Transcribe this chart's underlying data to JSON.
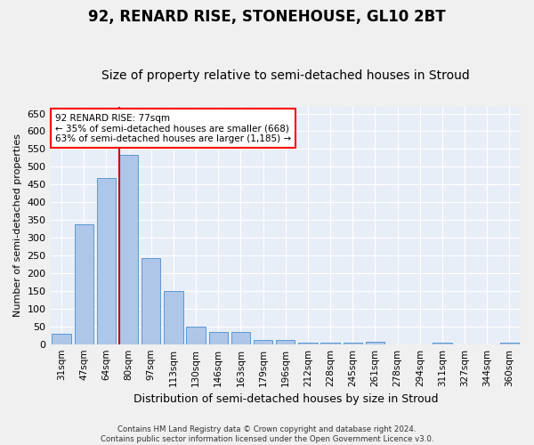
{
  "title": "92, RENARD RISE, STONEHOUSE, GL10 2BT",
  "subtitle": "Size of property relative to semi-detached houses in Stroud",
  "xlabel": "Distribution of semi-detached houses by size in Stroud",
  "ylabel": "Number of semi-detached properties",
  "categories": [
    "31sqm",
    "47sqm",
    "64sqm",
    "80sqm",
    "97sqm",
    "113sqm",
    "130sqm",
    "146sqm",
    "163sqm",
    "179sqm",
    "196sqm",
    "212sqm",
    "228sqm",
    "245sqm",
    "261sqm",
    "278sqm",
    "294sqm",
    "311sqm",
    "327sqm",
    "344sqm",
    "360sqm"
  ],
  "values": [
    29,
    338,
    468,
    534,
    242,
    150,
    49,
    35,
    35,
    12,
    12,
    5,
    5,
    5,
    6,
    0,
    0,
    5,
    0,
    0,
    5
  ],
  "bar_color": "#aec6e8",
  "bar_edge_color": "#5a9ad4",
  "highlight_color": "#cc0000",
  "annotation_text_line1": "92 RENARD RISE: 77sqm",
  "annotation_text_line2": "← 35% of semi-detached houses are smaller (668)",
  "annotation_text_line3": "63% of semi-detached houses are larger (1,185) →",
  "footer_line1": "Contains HM Land Registry data © Crown copyright and database right 2024.",
  "footer_line2": "Contains public sector information licensed under the Open Government Licence v3.0.",
  "ylim": [
    0,
    670
  ],
  "bg_color": "#e8eef8",
  "grid_color": "#ffffff",
  "title_fontsize": 12,
  "subtitle_fontsize": 10,
  "red_line_bar_index": 3
}
